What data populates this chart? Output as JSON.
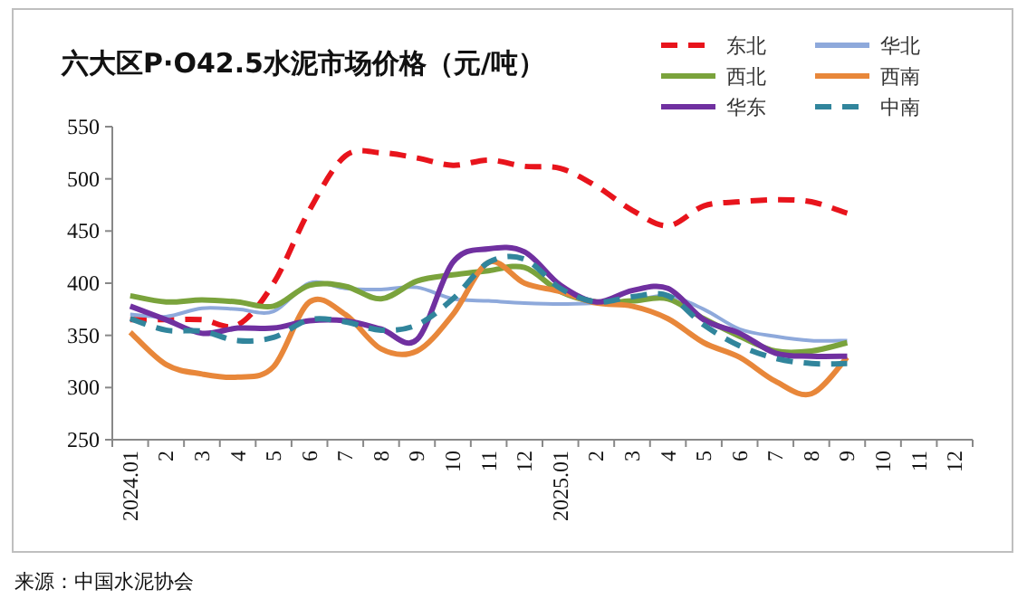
{
  "chart_data": {
    "type": "line",
    "title": "六大区P·O42.5水泥市场价格（元/吨）",
    "categories": [
      "2024.01",
      "2",
      "3",
      "4",
      "5",
      "6",
      "7",
      "8",
      "9",
      "10",
      "11",
      "12",
      "2025.01",
      "2",
      "3",
      "4",
      "5",
      "6",
      "7",
      "8",
      "9",
      "10",
      "11",
      "12"
    ],
    "series": [
      {
        "name": "东北",
        "color": "#e8141c",
        "line_style": "dashed",
        "values": [
          365,
          365,
          365,
          360,
          400,
          470,
          522,
          525,
          520,
          513,
          518,
          512,
          510,
          493,
          470,
          455,
          474,
          478,
          480,
          478,
          467,
          null,
          null,
          null
        ]
      },
      {
        "name": "华北",
        "color": "#8ea9db",
        "line_style": "solid",
        "values": [
          370,
          368,
          376,
          375,
          373,
          400,
          395,
          394,
          396,
          385,
          383,
          381,
          380,
          381,
          383,
          388,
          375,
          356,
          349,
          345,
          345,
          null,
          null,
          null
        ]
      },
      {
        "name": "西北",
        "color": "#7aa33c",
        "line_style": "solid",
        "values": [
          388,
          382,
          384,
          382,
          378,
          398,
          397,
          385,
          402,
          408,
          412,
          415,
          392,
          382,
          383,
          385,
          366,
          349,
          335,
          335,
          343,
          null,
          null,
          null
        ]
      },
      {
        "name": "西南",
        "color": "#e8873a",
        "line_style": "solid",
        "values": [
          353,
          322,
          313,
          310,
          320,
          382,
          370,
          337,
          335,
          370,
          420,
          400,
          392,
          381,
          378,
          366,
          343,
          329,
          306,
          294,
          329,
          null,
          null,
          null
        ]
      },
      {
        "name": "华东",
        "color": "#7030a0",
        "line_style": "solid",
        "values": [
          378,
          365,
          352,
          357,
          357,
          364,
          364,
          356,
          346,
          420,
          433,
          430,
          398,
          382,
          393,
          395,
          365,
          352,
          333,
          330,
          330,
          null,
          null,
          null
        ]
      },
      {
        "name": "中南",
        "color": "#31859c",
        "line_style": "dashed",
        "values": [
          366,
          355,
          354,
          345,
          348,
          365,
          363,
          355,
          360,
          385,
          420,
          423,
          395,
          382,
          387,
          388,
          360,
          340,
          328,
          323,
          323,
          null,
          null,
          null
        ]
      }
    ],
    "ylim": [
      250,
      550
    ],
    "yticks": [
      250,
      300,
      350,
      400,
      450,
      500,
      550
    ],
    "grid": false,
    "legend": "top right",
    "marker": "none",
    "annotations": [
      "来源：中国水泥协会"
    ]
  }
}
